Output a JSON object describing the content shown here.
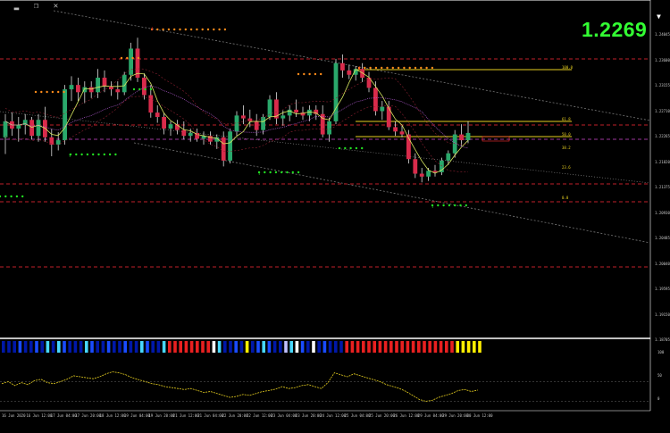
{
  "window": {
    "buttons": [
      {
        "name": "minimize-button",
        "label": "▂"
      },
      {
        "name": "restore-button",
        "label": "❐"
      },
      {
        "name": "close-button",
        "label": "✕"
      }
    ],
    "collapse_icon": "▼"
  },
  "price_label": "1.2269",
  "colors": {
    "bull": "#2aa86b",
    "bear": "#d92b4b",
    "fib": "#e8d020",
    "level": "#c0202a",
    "trend": "#808080",
    "dots_orange": "#ff8c1a",
    "dots_green": "#22e022",
    "osc": "#e8d020",
    "background": "#000000"
  },
  "y_axis_labels": [
    "1.24045",
    "1.23600",
    "1.23155",
    "1.22710",
    "1.22265",
    "1.21820",
    "1.21375",
    "1.20930",
    "1.20485",
    "1.20040",
    "1.19595",
    "1.19150",
    "1.18705"
  ],
  "sub_y_axis_labels": [
    "100",
    "50",
    "0"
  ],
  "fib_labels": [
    "100.0",
    "61.8",
    "50.0",
    "38.2",
    "23.6",
    "0.0"
  ],
  "x_axis_labels": [
    "16 Jun 2020",
    "16 Jun 12:00",
    "17 Jun 04:00",
    "17 Jun 20:00",
    "18 Jun 12:00",
    "19 Jun 04:00",
    "19 Jun 20:00",
    "21 Jun 12:00",
    "21 Jun 04:00",
    "22 Jun 20:00",
    "22 Jun 12:00",
    "23 Jun 04:00",
    "23 Jun 20:00",
    "24 Jun 12:00",
    "25 Jun 04:00",
    "25 Jun 20:00",
    "26 Jun 12:00",
    "29 Jun 04:00",
    "29 Jun 20:00",
    "30 Jun 12:00"
  ],
  "strength_bar_colors": [
    "#0018a8",
    "#0018a8",
    "#0018a8",
    "#1a4cff",
    "#0018a8",
    "#0018a8",
    "#1a4cff",
    "#0018a8",
    "#48d8ff",
    "#0018a8",
    "#48d8ff",
    "#1a4cff",
    "#0018a8",
    "#0018a8",
    "#0018a8",
    "#48d8ff",
    "#1a4cff",
    "#0018a8",
    "#0018a8",
    "#1a4cff",
    "#0018a8",
    "#0018a8",
    "#1a4cff",
    "#0018a8",
    "#0018a8",
    "#48d8ff",
    "#1a4cff",
    "#0018a8",
    "#0018a8",
    "#48d8ff",
    "#e82020",
    "#e82020",
    "#e82020",
    "#e82020",
    "#e82020",
    "#e82020",
    "#e82020",
    "#e82020",
    "#ffffff",
    "#48d8ff",
    "#0018a8",
    "#0018a8",
    "#1a4cff",
    "#0018a8",
    "#ffee00",
    "#0018a8",
    "#1a4cff",
    "#48d8ff",
    "#1a4cff",
    "#0018a8",
    "#0018a8",
    "#c0c0ff",
    "#48d8ff",
    "#ffffff",
    "#1a4cff",
    "#0018a8",
    "#ffffff",
    "#0018a8",
    "#1a4cff",
    "#0018a8",
    "#0018a8",
    "#0018a8",
    "#e82020",
    "#e82020",
    "#e82020",
    "#e82020",
    "#e82020",
    "#e82020",
    "#e82020",
    "#e82020",
    "#e82020",
    "#e82020",
    "#e82020",
    "#e82020",
    "#e82020",
    "#e82020",
    "#e82020",
    "#e82020",
    "#e82020",
    "#e82020",
    "#e82020",
    "#e82020",
    "#ffee00",
    "#ffee00",
    "#ffee00",
    "#ffee00",
    "#ffee00"
  ],
  "candles": [
    {
      "o": 1.2268,
      "h": 1.23,
      "l": 1.2245,
      "c": 1.229
    },
    {
      "o": 1.229,
      "h": 1.2302,
      "l": 1.227,
      "c": 1.228
    },
    {
      "o": 1.228,
      "h": 1.2296,
      "l": 1.2262,
      "c": 1.2285
    },
    {
      "o": 1.2285,
      "h": 1.23,
      "l": 1.2272,
      "c": 1.2292
    },
    {
      "o": 1.2292,
      "h": 1.2296,
      "l": 1.2265,
      "c": 1.227
    },
    {
      "o": 1.227,
      "h": 1.23,
      "l": 1.2262,
      "c": 1.2292
    },
    {
      "o": 1.2292,
      "h": 1.231,
      "l": 1.2262,
      "c": 1.2268
    },
    {
      "o": 1.2268,
      "h": 1.228,
      "l": 1.2242,
      "c": 1.2258
    },
    {
      "o": 1.2258,
      "h": 1.2275,
      "l": 1.225,
      "c": 1.2264
    },
    {
      "o": 1.2264,
      "h": 1.234,
      "l": 1.2258,
      "c": 1.2334
    },
    {
      "o": 1.2334,
      "h": 1.2352,
      "l": 1.2318,
      "c": 1.234
    },
    {
      "o": 1.234,
      "h": 1.235,
      "l": 1.2318,
      "c": 1.233
    },
    {
      "o": 1.233,
      "h": 1.2345,
      "l": 1.2315,
      "c": 1.2337
    },
    {
      "o": 1.2337,
      "h": 1.2345,
      "l": 1.2322,
      "c": 1.233
    },
    {
      "o": 1.233,
      "h": 1.2362,
      "l": 1.2322,
      "c": 1.235
    },
    {
      "o": 1.235,
      "h": 1.236,
      "l": 1.233,
      "c": 1.2338
    },
    {
      "o": 1.2338,
      "h": 1.2345,
      "l": 1.2325,
      "c": 1.2334
    },
    {
      "o": 1.2334,
      "h": 1.2345,
      "l": 1.232,
      "c": 1.233
    },
    {
      "o": 1.233,
      "h": 1.2358,
      "l": 1.2326,
      "c": 1.2354
    },
    {
      "o": 1.2354,
      "h": 1.2398,
      "l": 1.2346,
      "c": 1.239
    },
    {
      "o": 1.239,
      "h": 1.2405,
      "l": 1.2344,
      "c": 1.235
    },
    {
      "o": 1.235,
      "h": 1.2356,
      "l": 1.232,
      "c": 1.2326
    },
    {
      "o": 1.2326,
      "h": 1.234,
      "l": 1.2295,
      "c": 1.2302
    },
    {
      "o": 1.2302,
      "h": 1.2312,
      "l": 1.2288,
      "c": 1.2296
    },
    {
      "o": 1.2296,
      "h": 1.2302,
      "l": 1.2272,
      "c": 1.228
    },
    {
      "o": 1.228,
      "h": 1.229,
      "l": 1.227,
      "c": 1.2286
    },
    {
      "o": 1.2286,
      "h": 1.2292,
      "l": 1.2272,
      "c": 1.2278
    },
    {
      "o": 1.2278,
      "h": 1.229,
      "l": 1.2265,
      "c": 1.227
    },
    {
      "o": 1.227,
      "h": 1.228,
      "l": 1.2262,
      "c": 1.2274
    },
    {
      "o": 1.2274,
      "h": 1.228,
      "l": 1.2262,
      "c": 1.2266
    },
    {
      "o": 1.2266,
      "h": 1.2276,
      "l": 1.2258,
      "c": 1.227
    },
    {
      "o": 1.227,
      "h": 1.2276,
      "l": 1.2258,
      "c": 1.2262
    },
    {
      "o": 1.2262,
      "h": 1.2272,
      "l": 1.2252,
      "c": 1.2268
    },
    {
      "o": 1.2268,
      "h": 1.2276,
      "l": 1.2228,
      "c": 1.2236
    },
    {
      "o": 1.2236,
      "h": 1.228,
      "l": 1.2232,
      "c": 1.2276
    },
    {
      "o": 1.2276,
      "h": 1.2304,
      "l": 1.227,
      "c": 1.2298
    },
    {
      "o": 1.2298,
      "h": 1.2312,
      "l": 1.2286,
      "c": 1.2294
    },
    {
      "o": 1.2294,
      "h": 1.2306,
      "l": 1.2282,
      "c": 1.229
    },
    {
      "o": 1.229,
      "h": 1.23,
      "l": 1.227,
      "c": 1.2278
    },
    {
      "o": 1.2278,
      "h": 1.23,
      "l": 1.2272,
      "c": 1.2296
    },
    {
      "o": 1.2296,
      "h": 1.2326,
      "l": 1.2292,
      "c": 1.232
    },
    {
      "o": 1.232,
      "h": 1.233,
      "l": 1.2286,
      "c": 1.2294
    },
    {
      "o": 1.2294,
      "h": 1.2305,
      "l": 1.2284,
      "c": 1.2298
    },
    {
      "o": 1.2298,
      "h": 1.2312,
      "l": 1.229,
      "c": 1.2306
    },
    {
      "o": 1.2306,
      "h": 1.232,
      "l": 1.2296,
      "c": 1.2302
    },
    {
      "o": 1.2302,
      "h": 1.231,
      "l": 1.2292,
      "c": 1.2298
    },
    {
      "o": 1.2298,
      "h": 1.2312,
      "l": 1.229,
      "c": 1.2306
    },
    {
      "o": 1.2306,
      "h": 1.2312,
      "l": 1.2292,
      "c": 1.23
    },
    {
      "o": 1.23,
      "h": 1.2312,
      "l": 1.2268,
      "c": 1.2272
    },
    {
      "o": 1.2272,
      "h": 1.2295,
      "l": 1.2262,
      "c": 1.229
    },
    {
      "o": 1.229,
      "h": 1.2376,
      "l": 1.2286,
      "c": 1.237
    },
    {
      "o": 1.237,
      "h": 1.2382,
      "l": 1.235,
      "c": 1.236
    },
    {
      "o": 1.236,
      "h": 1.2368,
      "l": 1.2348,
      "c": 1.2354
    },
    {
      "o": 1.2354,
      "h": 1.2366,
      "l": 1.2346,
      "c": 1.2362
    },
    {
      "o": 1.2362,
      "h": 1.237,
      "l": 1.2344,
      "c": 1.235
    },
    {
      "o": 1.235,
      "h": 1.2358,
      "l": 1.233,
      "c": 1.2336
    },
    {
      "o": 1.2336,
      "h": 1.2345,
      "l": 1.2298,
      "c": 1.2304
    },
    {
      "o": 1.2304,
      "h": 1.2318,
      "l": 1.2292,
      "c": 1.231
    },
    {
      "o": 1.231,
      "h": 1.2318,
      "l": 1.2278,
      "c": 1.2282
    },
    {
      "o": 1.2282,
      "h": 1.229,
      "l": 1.227,
      "c": 1.2276
    },
    {
      "o": 1.2276,
      "h": 1.2284,
      "l": 1.2268,
      "c": 1.2272
    },
    {
      "o": 1.2272,
      "h": 1.2278,
      "l": 1.2232,
      "c": 1.2238
    },
    {
      "o": 1.2238,
      "h": 1.2246,
      "l": 1.2212,
      "c": 1.2218
    },
    {
      "o": 1.2218,
      "h": 1.2226,
      "l": 1.2206,
      "c": 1.2214
    },
    {
      "o": 1.2214,
      "h": 1.2226,
      "l": 1.2208,
      "c": 1.2222
    },
    {
      "o": 1.2222,
      "h": 1.223,
      "l": 1.2214,
      "c": 1.222
    },
    {
      "o": 1.222,
      "h": 1.224,
      "l": 1.2216,
      "c": 1.2236
    },
    {
      "o": 1.2236,
      "h": 1.225,
      "l": 1.223,
      "c": 1.2246
    },
    {
      "o": 1.2246,
      "h": 1.2278,
      "l": 1.224,
      "c": 1.2272
    },
    {
      "o": 1.2272,
      "h": 1.2286,
      "l": 1.2256,
      "c": 1.2264
    },
    {
      "o": 1.2264,
      "h": 1.229,
      "l": 1.226,
      "c": 1.2274
    }
  ],
  "oscillator": [
    46,
    50,
    42,
    48,
    44,
    52,
    55,
    48,
    46,
    50,
    55,
    62,
    60,
    58,
    56,
    60,
    66,
    70,
    68,
    64,
    58,
    54,
    50,
    46,
    44,
    40,
    38,
    36,
    34,
    36,
    32,
    28,
    30,
    26,
    22,
    18,
    20,
    24,
    22,
    26,
    30,
    32,
    35,
    40,
    36,
    38,
    42,
    44,
    40,
    36,
    48,
    68,
    64,
    60,
    66,
    62,
    58,
    54,
    50,
    44,
    40,
    36,
    30,
    22,
    14,
    10,
    12,
    18,
    22,
    26,
    32,
    34,
    30,
    33
  ]
}
